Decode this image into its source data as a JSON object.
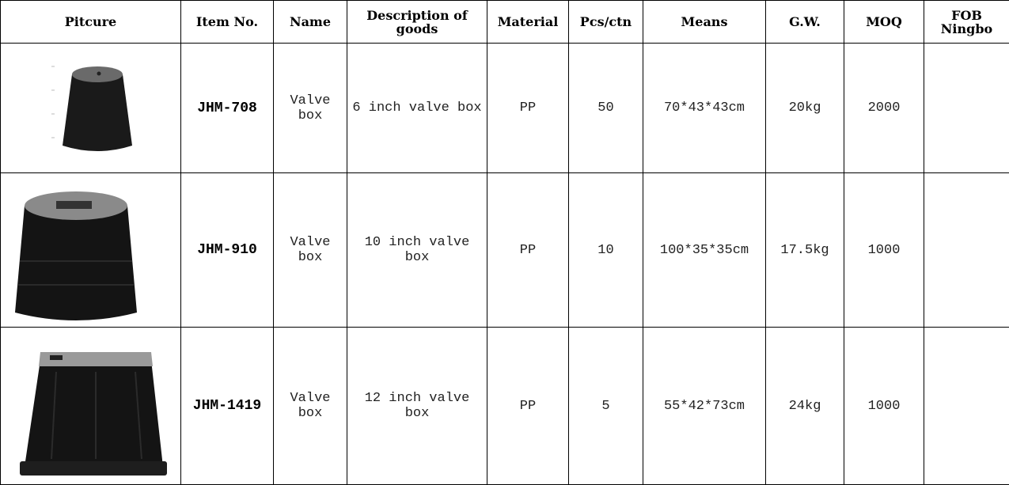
{
  "table": {
    "headers": [
      "Pitcure",
      "Item No.",
      "Name",
      "Description of goods",
      "Material",
      "Pcs/ctn",
      "Means",
      "G.W.",
      "MOQ",
      "FOB Ningbo"
    ],
    "rows": [
      {
        "item": "JHM-708",
        "name": "Valve box",
        "description": "6 inch valve box",
        "material": "PP",
        "pcs": "50",
        "means": "70*43*43cm",
        "gw": "20kg",
        "moq": "2000"
      },
      {
        "item": "JHM-910",
        "name": "Valve box",
        "description": "10 inch valve box",
        "material": "PP",
        "pcs": "10",
        "means": "100*35*35cm",
        "gw": "17.5kg",
        "moq": "1000"
      },
      {
        "item": "JHM-1419",
        "name": "Valve box",
        "description": "12 inch valve box",
        "material": "PP",
        "pcs": "5",
        "means": "55*42*73cm",
        "gw": "24kg",
        "moq": "1000"
      }
    ]
  }
}
